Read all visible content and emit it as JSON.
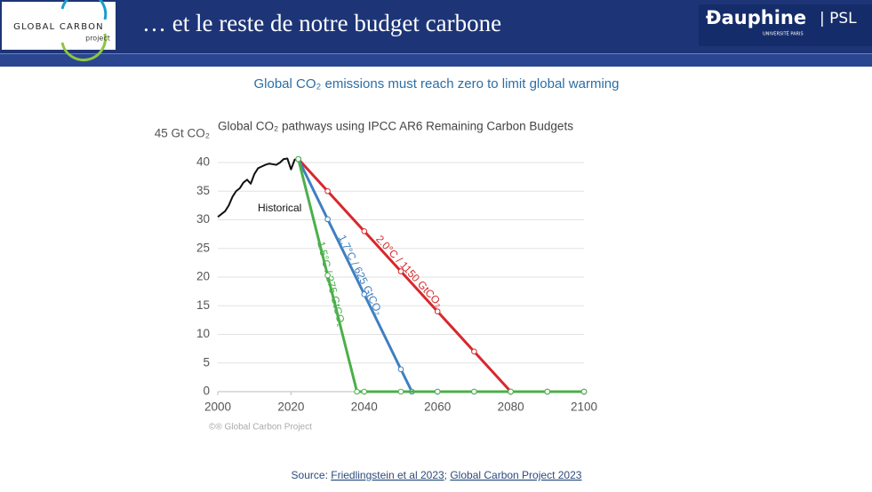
{
  "header": {
    "logo": "GLOBAL CARBON",
    "logo_sub": "project",
    "title": "… et le reste de notre budget carbone",
    "partner": "Ðauphine",
    "partner_psl": "| PSL",
    "partner_sub": "UNIVERSITÉ PARIS"
  },
  "subtitle": "Global CO₂ emissions must reach zero to limit global warming",
  "chart_data": {
    "type": "line",
    "title": "Global CO₂ pathways using IPCC AR6 Remaining Carbon Budgets",
    "xlim": [
      2000,
      2100
    ],
    "xticks": [
      2000,
      2020,
      2040,
      2060,
      2080,
      2100
    ],
    "ylim": [
      0,
      45
    ],
    "yticks": [
      0,
      5,
      10,
      15,
      20,
      25,
      30,
      35,
      40,
      {
        "value": 45,
        "label": "45 Gt CO₂"
      }
    ],
    "grid": true,
    "series": [
      {
        "name": "Historical",
        "color": "#111111",
        "x": [
          2000,
          2001,
          2002,
          2003,
          2004,
          2005,
          2006,
          2007,
          2008,
          2009,
          2010,
          2011,
          2012,
          2013,
          2014,
          2015,
          2016,
          2017,
          2018,
          2019,
          2020,
          2021,
          2022
        ],
        "values": [
          30.5,
          31.0,
          31.5,
          32.5,
          34.0,
          35.0,
          35.5,
          36.5,
          37.0,
          36.3,
          38.0,
          39.0,
          39.3,
          39.6,
          39.8,
          39.7,
          39.6,
          40.0,
          40.6,
          40.7,
          38.8,
          40.5,
          40.6
        ]
      },
      {
        "name": "2.0°C / 1150 GtCO₂",
        "color": "#d7282c",
        "x": [
          2022,
          2030,
          2040,
          2050,
          2060,
          2070,
          2080,
          2090,
          2100
        ],
        "values": [
          40.6,
          35.0,
          28.0,
          21.0,
          14.0,
          7.0,
          0,
          0,
          0
        ]
      },
      {
        "name": "1.7°C / 625 GtCO₂",
        "color": "#3f7fc1",
        "x": [
          2022,
          2030,
          2040,
          2050,
          2053,
          2060,
          2070,
          2080,
          2090,
          2100
        ],
        "values": [
          40.6,
          30.1,
          17.0,
          3.9,
          0,
          0,
          0,
          0,
          0,
          0
        ]
      },
      {
        "name": "1.5°C / 275 GtCO₂",
        "color": "#4caf4a",
        "x": [
          2022,
          2030,
          2038,
          2040,
          2050,
          2060,
          2070,
          2080,
          2090,
          2100
        ],
        "values": [
          40.6,
          20.3,
          0,
          0,
          0,
          0,
          0,
          0,
          0,
          0
        ]
      }
    ],
    "credit": "©® Global Carbon Project"
  },
  "source": {
    "prefix": "Source: ",
    "ref1": "Friedlingstein et al 2023",
    "sep": "; ",
    "ref2": "Global Carbon Project 2023"
  }
}
